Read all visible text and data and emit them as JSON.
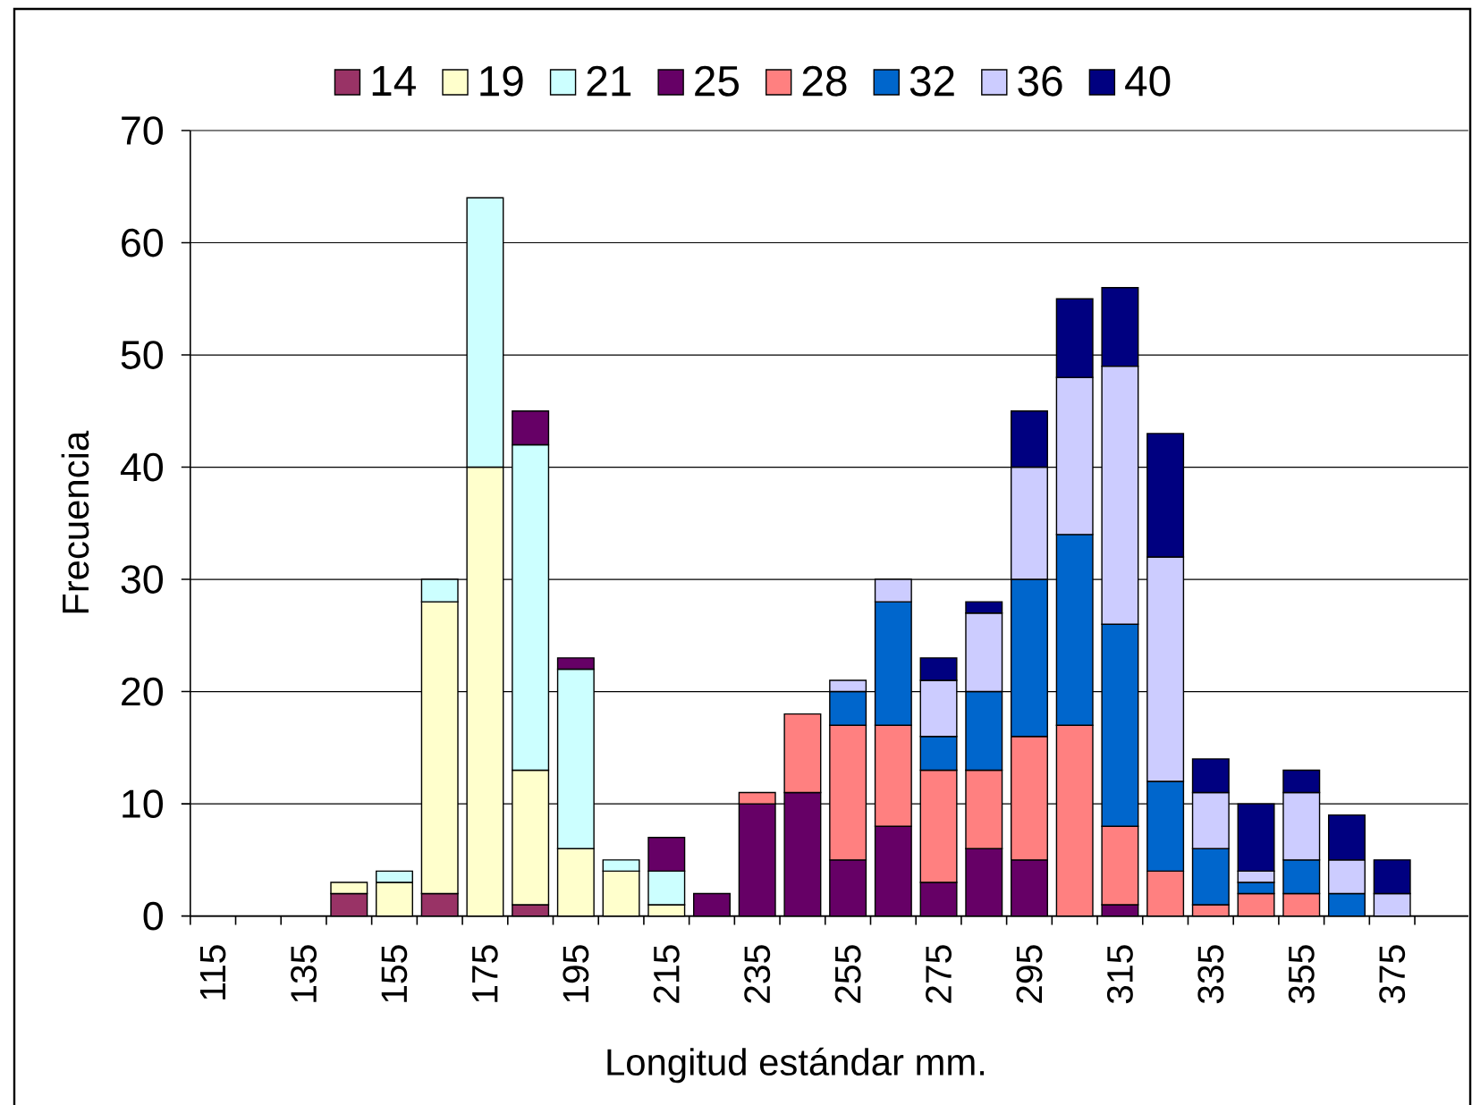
{
  "chart_data": {
    "type": "bar",
    "stacked": true,
    "xlabel": "Longitud estándar mm.",
    "ylabel": "Frecuencia",
    "categories": [
      "115",
      null,
      "135",
      null,
      "155",
      null,
      "175",
      null,
      "195",
      null,
      "215",
      null,
      "235",
      null,
      "255",
      null,
      "275",
      null,
      "295",
      null,
      "315",
      null,
      "335",
      null,
      "355",
      null,
      "375"
    ],
    "series": [
      {
        "name": "14",
        "color": "#993366",
        "values": [
          null,
          null,
          null,
          2,
          null,
          2,
          null,
          1,
          null,
          null,
          null,
          null,
          null,
          null,
          null,
          null,
          null,
          null,
          null,
          null,
          null,
          null,
          null,
          null,
          null,
          null,
          null
        ]
      },
      {
        "name": "19",
        "color": "#ffffcc",
        "values": [
          null,
          null,
          null,
          1,
          3,
          26,
          40,
          12,
          6,
          4,
          1,
          null,
          null,
          null,
          null,
          null,
          null,
          null,
          null,
          null,
          null,
          null,
          null,
          null,
          null,
          null,
          null
        ]
      },
      {
        "name": "21",
        "color": "#ccffff",
        "values": [
          null,
          null,
          null,
          null,
          1,
          2,
          24,
          29,
          16,
          1,
          3,
          null,
          null,
          null,
          null,
          null,
          null,
          null,
          null,
          null,
          null,
          null,
          null,
          null,
          null,
          null,
          null
        ]
      },
      {
        "name": "25",
        "color": "#660066",
        "values": [
          null,
          null,
          null,
          null,
          null,
          null,
          null,
          3,
          1,
          null,
          3,
          2,
          10,
          11,
          5,
          8,
          3,
          6,
          5,
          null,
          1,
          null,
          null,
          null,
          null,
          null,
          null
        ]
      },
      {
        "name": "28",
        "color": "#ff8080",
        "values": [
          null,
          null,
          null,
          null,
          null,
          null,
          null,
          null,
          null,
          null,
          null,
          null,
          1,
          7,
          12,
          9,
          10,
          7,
          11,
          17,
          7,
          4,
          1,
          2,
          2,
          null,
          null
        ]
      },
      {
        "name": "32",
        "color": "#0066cc",
        "values": [
          null,
          null,
          null,
          null,
          null,
          null,
          null,
          null,
          null,
          null,
          null,
          null,
          null,
          null,
          3,
          11,
          3,
          7,
          14,
          17,
          18,
          8,
          5,
          1,
          3,
          2,
          null
        ]
      },
      {
        "name": "36",
        "color": "#ccccff",
        "values": [
          null,
          null,
          null,
          null,
          null,
          null,
          null,
          null,
          null,
          null,
          null,
          null,
          null,
          null,
          1,
          2,
          5,
          7,
          10,
          14,
          23,
          20,
          5,
          1,
          6,
          3,
          2
        ]
      },
      {
        "name": "40",
        "color": "#000080",
        "values": [
          null,
          null,
          null,
          null,
          null,
          null,
          null,
          null,
          null,
          null,
          null,
          null,
          null,
          null,
          null,
          null,
          2,
          1,
          5,
          7,
          7,
          11,
          3,
          6,
          2,
          4,
          3
        ]
      }
    ],
    "ylim": [
      0,
      70
    ],
    "yticks": [
      0,
      10,
      20,
      30,
      40,
      50,
      60,
      70
    ],
    "grid": "y",
    "legend": "top"
  }
}
